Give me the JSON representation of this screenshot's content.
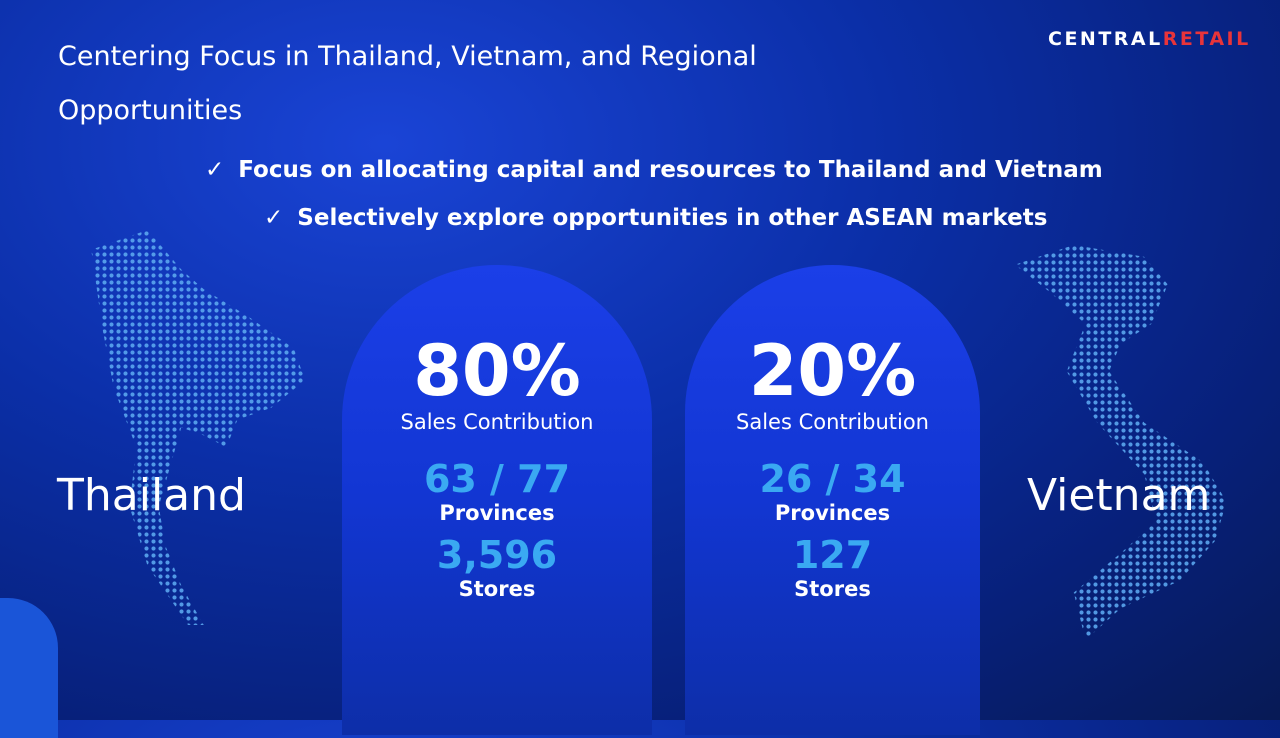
{
  "title": "Centering Focus in Thailand, Vietnam, and Regional Opportunities",
  "logo": {
    "part1": "CENTRAL",
    "part2": "RETAIL",
    "accent": "#e8343a"
  },
  "bullets": [
    {
      "icon": "check-icon",
      "mark": "✓",
      "text": "Focus on allocating capital and resources to Thailand and Vietnam"
    },
    {
      "icon": "check-icon",
      "mark": "✓",
      "text": "Selectively explore opportunities in other ASEAN markets"
    }
  ],
  "countries": [
    {
      "name": "Thailand",
      "pct": "80%",
      "pct_label": "Sales Contribution",
      "provinces": "63 / 77",
      "provinces_label": "Provinces",
      "stores": "3,596",
      "stores_label": "Stores"
    },
    {
      "name": "Vietnam",
      "pct": "20%",
      "pct_label": "Sales Contribution",
      "provinces": "26 / 34",
      "provinces_label": "Provinces",
      "stores": "127",
      "stores_label": "Stores"
    }
  ],
  "colors": {
    "highlight": "#3aa9f2",
    "card": "#1b3fe8"
  }
}
